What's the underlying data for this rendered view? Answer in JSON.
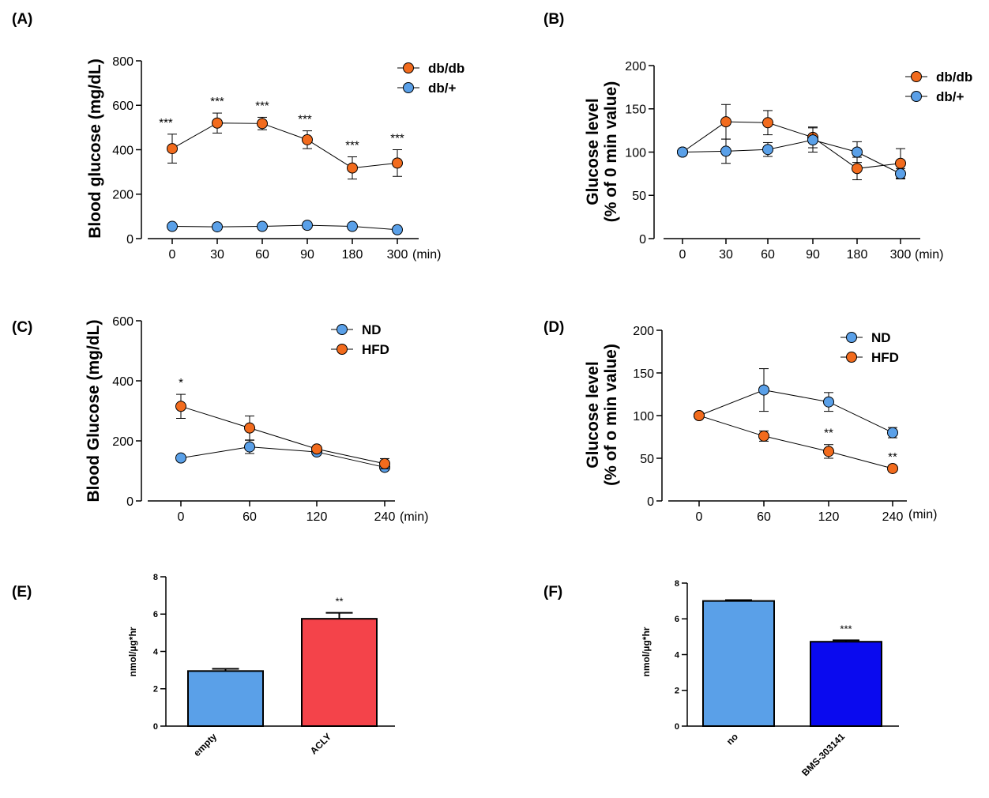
{
  "colors": {
    "orange": "#f26b1d",
    "blue": "#5aa0e8",
    "red": "#f4434a",
    "deep_blue": "#0a0aef",
    "axis": "#000000"
  },
  "chart_data": [
    {
      "panel": "(A)",
      "type": "line",
      "ylabel": "Blood glucose (mg/dL)",
      "x_unit": "(min)",
      "categories": [
        "0",
        "30",
        "60",
        "90",
        "180",
        "300"
      ],
      "ylim": [
        0,
        800
      ],
      "yticks": [
        "0",
        "200",
        "400",
        "600",
        "800"
      ],
      "series": [
        {
          "name": "db/db",
          "color": "orange",
          "values": [
            405,
            520,
            518,
            445,
            318,
            340
          ],
          "errors": [
            65,
            45,
            28,
            40,
            50,
            60
          ],
          "annotations": [
            "***",
            "***",
            "***",
            "***",
            "***",
            "***"
          ]
        },
        {
          "name": "db/+",
          "color": "blue",
          "values": [
            55,
            53,
            55,
            60,
            55,
            40
          ],
          "errors": [
            0,
            0,
            0,
            0,
            0,
            0
          ],
          "annotations": [
            "",
            "",
            "",
            "",
            "",
            ""
          ]
        }
      ],
      "legend": "top-right"
    },
    {
      "panel": "(B)",
      "type": "line",
      "ylabel": "Glucose level (% of 0 min value)",
      "x_unit": "(min)",
      "categories": [
        "0",
        "30",
        "60",
        "90",
        "180",
        "300"
      ],
      "ylim": [
        0,
        200
      ],
      "yticks": [
        "0",
        "50",
        "100",
        "150",
        "200"
      ],
      "series": [
        {
          "name": "db/db",
          "color": "orange",
          "values": [
            100,
            135,
            134,
            117,
            81,
            87
          ],
          "errors": [
            0,
            20,
            14,
            12,
            13,
            17
          ],
          "annotations": [
            "",
            "",
            "",
            "",
            "",
            ""
          ]
        },
        {
          "name": "db/+",
          "color": "blue",
          "values": [
            100,
            101,
            103,
            114,
            100,
            75
          ],
          "errors": [
            0,
            14,
            8,
            14,
            12,
            6
          ],
          "annotations": [
            "",
            "",
            "",
            "",
            "",
            ""
          ]
        }
      ],
      "legend": "top-right"
    },
    {
      "panel": "(C)",
      "type": "line",
      "ylabel": "Blood Glucose (mg/dL)",
      "x_unit": "(min)",
      "categories": [
        "0",
        "60",
        "120",
        "240"
      ],
      "ylim": [
        0,
        600
      ],
      "yticks": [
        "0",
        "200",
        "400",
        "600"
      ],
      "series": [
        {
          "name": "ND",
          "color": "blue",
          "values": [
            143,
            180,
            163,
            112
          ],
          "errors": [
            0,
            22,
            0,
            0
          ],
          "annotations": [
            "",
            "",
            "",
            ""
          ]
        },
        {
          "name": "HFD",
          "color": "orange",
          "values": [
            315,
            243,
            173,
            124
          ],
          "errors": [
            40,
            40,
            0,
            17
          ],
          "annotations": [
            "*",
            "",
            "",
            ""
          ]
        }
      ],
      "legend": "top-right"
    },
    {
      "panel": "(D)",
      "type": "line",
      "ylabel": "Glucose level (% of o min value)",
      "x_unit": "(min)",
      "categories": [
        "0",
        "60",
        "120",
        "240"
      ],
      "ylim": [
        0,
        200
      ],
      "yticks": [
        "0",
        "50",
        "100",
        "150",
        "200"
      ],
      "series": [
        {
          "name": "ND",
          "color": "blue",
          "values": [
            100,
            130,
            116,
            80
          ],
          "errors": [
            0,
            25,
            11,
            6
          ],
          "annotations": [
            "",
            "",
            "",
            ""
          ]
        },
        {
          "name": "HFD",
          "color": "orange",
          "values": [
            100,
            76,
            58,
            38
          ],
          "errors": [
            0,
            6,
            8,
            0
          ],
          "annotations": [
            "",
            "",
            "**",
            "**"
          ]
        }
      ],
      "legend": "top-right"
    },
    {
      "panel": "(E)",
      "type": "bar",
      "ylabel": "nmol/µg*hr",
      "categories": [
        "empty",
        "ACLY"
      ],
      "values": [
        2.95,
        5.75
      ],
      "errors": [
        0.12,
        0.32
      ],
      "bar_colors": [
        "blue",
        "red"
      ],
      "annotations": [
        "",
        "**"
      ],
      "ylim": [
        0,
        8
      ],
      "yticks": [
        "0",
        "2",
        "4",
        "6",
        "8"
      ]
    },
    {
      "panel": "(F)",
      "type": "bar",
      "ylabel": "nmol/µg*hr",
      "categories": [
        "no",
        "BMS-303141"
      ],
      "values": [
        7.0,
        4.72
      ],
      "errors": [
        0.05,
        0.08
      ],
      "bar_colors": [
        "blue",
        "deep_blue"
      ],
      "annotations": [
        "",
        "***"
      ],
      "ylim": [
        0,
        8
      ],
      "yticks": [
        "0",
        "2",
        "4",
        "6",
        "8"
      ]
    }
  ]
}
